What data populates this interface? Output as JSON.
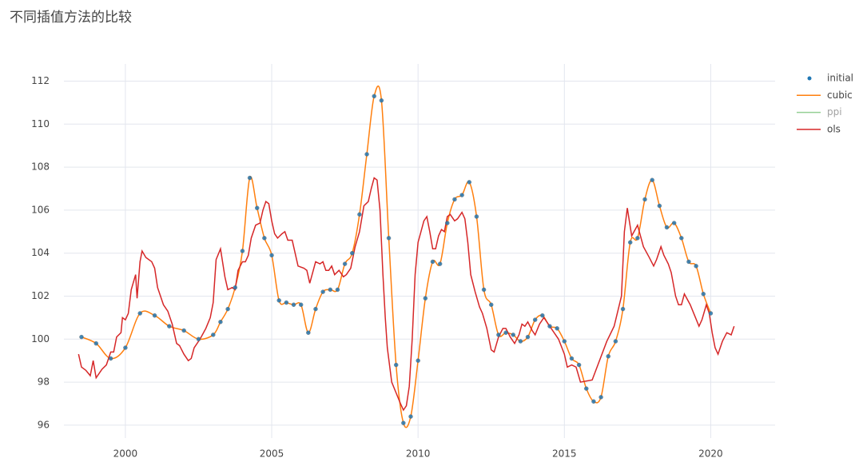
{
  "chart_data": {
    "type": "line",
    "title": "不同插值方法的比较",
    "xlim": [
      1997.9,
      2022.2
    ],
    "xticks": [
      2000,
      2005,
      2010,
      2015,
      2020
    ],
    "ylim": [
      95.4,
      112.8
    ],
    "yticks": [
      96,
      98,
      100,
      102,
      104,
      106,
      108,
      110,
      112
    ],
    "grid": true,
    "legend": "right",
    "series": [
      {
        "name": "initial",
        "color": "#1f77b4",
        "mode": "markers",
        "x": [
          1998.5,
          1999,
          1999.5,
          2000,
          2000.5,
          2001,
          2001.5,
          2002,
          2002.5,
          2003,
          2003.25,
          2003.5,
          2003.75,
          2004,
          2004.25,
          2004.5,
          2004.75,
          2005,
          2005.25,
          2005.5,
          2005.75,
          2006,
          2006.25,
          2006.5,
          2006.75,
          2007,
          2007.25,
          2007.5,
          2007.75,
          2008,
          2008.25,
          2008.5,
          2008.75,
          2009,
          2009.25,
          2009.5,
          2009.75,
          2010,
          2010.25,
          2010.5,
          2010.75,
          2011,
          2011.25,
          2011.5,
          2011.75,
          2012,
          2012.25,
          2012.5,
          2012.75,
          2013,
          2013.25,
          2013.5,
          2013.75,
          2014,
          2014.25,
          2014.5,
          2014.75,
          2015,
          2015.25,
          2015.5,
          2015.75,
          2016,
          2016.25,
          2016.5,
          2016.75,
          2017,
          2017.25,
          2017.5,
          2017.75,
          2018,
          2018.25,
          2018.5,
          2018.75,
          2019,
          2019.25,
          2019.5,
          2019.75,
          2020
        ],
        "values": [
          100.1,
          99.8,
          99.1,
          99.6,
          101.2,
          101.1,
          100.6,
          100.4,
          100.0,
          100.2,
          100.8,
          101.4,
          102.4,
          104.1,
          107.5,
          106.1,
          104.7,
          103.9,
          101.8,
          101.7,
          101.6,
          101.6,
          100.3,
          101.4,
          102.2,
          102.3,
          102.3,
          103.5,
          104.0,
          105.8,
          108.6,
          111.3,
          111.1,
          104.7,
          98.8,
          96.1,
          96.4,
          99.0,
          101.9,
          103.6,
          103.5,
          105.4,
          106.5,
          106.7,
          107.3,
          105.7,
          102.3,
          101.6,
          100.2,
          100.3,
          100.2,
          99.9,
          100.1,
          100.9,
          101.1,
          100.6,
          100.5,
          99.9,
          99.1,
          98.8,
          97.7,
          97.1,
          97.3,
          99.2,
          99.9,
          101.4,
          104.5,
          104.7,
          106.5,
          107.4,
          106.2,
          105.2,
          105.4,
          104.7,
          103.6,
          103.4,
          102.1,
          101.2
        ]
      },
      {
        "name": "cubic",
        "color": "#ff7f0e",
        "mode": "lines",
        "line_shape": "spline",
        "x": [
          1998.5,
          1999,
          1999.5,
          2000,
          2000.5,
          2001,
          2001.5,
          2002,
          2002.5,
          2003,
          2003.25,
          2003.5,
          2003.75,
          2004,
          2004.25,
          2004.5,
          2004.75,
          2005,
          2005.25,
          2005.5,
          2005.75,
          2006,
          2006.25,
          2006.5,
          2006.75,
          2007,
          2007.25,
          2007.5,
          2007.75,
          2008,
          2008.25,
          2008.5,
          2008.75,
          2009,
          2009.25,
          2009.5,
          2009.75,
          2010,
          2010.25,
          2010.5,
          2010.75,
          2011,
          2011.25,
          2011.5,
          2011.75,
          2012,
          2012.25,
          2012.5,
          2012.75,
          2013,
          2013.25,
          2013.5,
          2013.75,
          2014,
          2014.25,
          2014.5,
          2014.75,
          2015,
          2015.25,
          2015.5,
          2015.75,
          2016,
          2016.25,
          2016.5,
          2016.75,
          2017,
          2017.25,
          2017.5,
          2017.75,
          2018,
          2018.25,
          2018.5,
          2018.75,
          2019,
          2019.25,
          2019.5,
          2019.75,
          2020
        ],
        "values": [
          100.1,
          99.8,
          99.1,
          99.6,
          101.2,
          101.1,
          100.6,
          100.4,
          100.0,
          100.2,
          100.8,
          101.4,
          102.4,
          104.1,
          107.5,
          106.1,
          104.7,
          103.9,
          101.8,
          101.7,
          101.6,
          101.6,
          100.3,
          101.4,
          102.2,
          102.3,
          102.3,
          103.5,
          104.0,
          105.8,
          108.6,
          111.3,
          111.1,
          104.7,
          98.8,
          96.1,
          96.4,
          99.0,
          101.9,
          103.6,
          103.5,
          105.4,
          106.5,
          106.7,
          107.3,
          105.7,
          102.3,
          101.6,
          100.2,
          100.3,
          100.2,
          99.9,
          100.1,
          100.9,
          101.1,
          100.6,
          100.5,
          99.9,
          99.1,
          98.8,
          97.7,
          97.1,
          97.3,
          99.2,
          99.9,
          101.4,
          104.5,
          104.7,
          106.5,
          107.4,
          106.2,
          105.2,
          105.4,
          104.7,
          103.6,
          103.4,
          102.1,
          101.2
        ]
      },
      {
        "name": "ppi",
        "color": "#2ca02c",
        "mode": "lines",
        "visible": "legendonly"
      },
      {
        "name": "ols",
        "color": "#d62728",
        "mode": "lines",
        "x": [
          1998.4,
          1998.5,
          1998.65,
          1998.8,
          1998.9,
          1999.0,
          1999.2,
          1999.35,
          1999.5,
          1999.6,
          1999.7,
          1999.85,
          1999.9,
          2000.0,
          2000.1,
          2000.2,
          2000.35,
          2000.4,
          2000.5,
          2000.57,
          2000.7,
          2000.9,
          2001.0,
          2001.1,
          2001.3,
          2001.45,
          2001.6,
          2001.75,
          2001.85,
          2002.0,
          2002.15,
          2002.25,
          2002.35,
          2002.55,
          2002.75,
          2002.9,
          2003.0,
          2003.1,
          2003.25,
          2003.4,
          2003.5,
          2003.65,
          2003.75,
          2003.85,
          2004.0,
          2004.1,
          2004.2,
          2004.3,
          2004.45,
          2004.6,
          2004.7,
          2004.8,
          2004.9,
          2005.0,
          2005.1,
          2005.2,
          2005.35,
          2005.45,
          2005.55,
          2005.7,
          2005.8,
          2005.9,
          2006.1,
          2006.2,
          2006.3,
          2006.4,
          2006.5,
          2006.65,
          2006.75,
          2006.85,
          2006.95,
          2007.05,
          2007.15,
          2007.3,
          2007.45,
          2007.55,
          2007.7,
          2007.85,
          2008.0,
          2008.15,
          2008.3,
          2008.4,
          2008.5,
          2008.6,
          2008.7,
          2008.8,
          2008.88,
          2008.95,
          2009.1,
          2009.25,
          2009.4,
          2009.5,
          2009.6,
          2009.7,
          2009.8,
          2009.9,
          2010.0,
          2010.1,
          2010.2,
          2010.3,
          2010.4,
          2010.5,
          2010.6,
          2010.7,
          2010.8,
          2010.9,
          2011.0,
          2011.1,
          2011.25,
          2011.35,
          2011.5,
          2011.6,
          2011.7,
          2011.8,
          2011.95,
          2012.1,
          2012.2,
          2012.35,
          2012.5,
          2012.6,
          2012.75,
          2012.9,
          2013.0,
          2013.15,
          2013.3,
          2013.45,
          2013.55,
          2013.65,
          2013.75,
          2013.9,
          2014.0,
          2014.15,
          2014.3,
          2014.45,
          2014.6,
          2014.8,
          2015.0,
          2015.1,
          2015.25,
          2015.4,
          2015.55,
          2015.95,
          2016.2,
          2016.45,
          2016.7,
          2016.95,
          2017.05,
          2017.15,
          2017.3,
          2017.5,
          2017.7,
          2017.9,
          2018.05,
          2018.15,
          2018.3,
          2018.4,
          2018.55,
          2018.65,
          2018.8,
          2018.9,
          2019.0,
          2019.1,
          2019.3,
          2019.45,
          2019.6,
          2019.7,
          2019.85,
          2019.95,
          2020.05,
          2020.15,
          2020.25,
          2020.4,
          2020.55,
          2020.7,
          2020.8
        ],
        "values": [
          99.3,
          98.7,
          98.55,
          98.3,
          99.0,
          98.2,
          98.6,
          98.8,
          99.4,
          99.4,
          100.1,
          100.3,
          101.0,
          100.9,
          101.2,
          102.3,
          103.0,
          101.9,
          103.6,
          104.1,
          103.8,
          103.6,
          103.3,
          102.4,
          101.6,
          101.3,
          100.7,
          99.8,
          99.7,
          99.3,
          99.0,
          99.1,
          99.6,
          100.0,
          100.5,
          101.0,
          101.7,
          103.7,
          104.2,
          102.9,
          102.3,
          102.4,
          102.3,
          103.2,
          103.6,
          103.6,
          103.9,
          104.7,
          105.3,
          105.4,
          106.0,
          106.4,
          106.3,
          105.5,
          104.9,
          104.7,
          104.9,
          105.0,
          104.6,
          104.6,
          104.0,
          103.4,
          103.3,
          103.2,
          102.6,
          103.1,
          103.6,
          103.5,
          103.6,
          103.2,
          103.2,
          103.4,
          103.0,
          103.2,
          102.9,
          103.0,
          103.3,
          104.3,
          105.0,
          106.2,
          106.4,
          107.0,
          107.5,
          107.4,
          106.0,
          103.0,
          101.0,
          99.6,
          98.0,
          97.5,
          97.0,
          96.7,
          96.9,
          97.8,
          100.0,
          103.0,
          104.5,
          105.0,
          105.5,
          105.7,
          105.0,
          104.2,
          104.2,
          104.8,
          105.1,
          105.0,
          105.7,
          105.8,
          105.5,
          105.6,
          105.9,
          105.6,
          104.5,
          103.0,
          102.2,
          101.5,
          101.2,
          100.5,
          99.5,
          99.4,
          100.1,
          100.5,
          100.5,
          100.1,
          99.8,
          100.2,
          100.7,
          100.6,
          100.8,
          100.4,
          100.2,
          100.7,
          101.0,
          100.7,
          100.4,
          100.0,
          99.3,
          98.7,
          98.8,
          98.7,
          98.0,
          98.1,
          99.0,
          99.9,
          100.6,
          102.0,
          105.0,
          106.1,
          104.8,
          105.3,
          104.3,
          103.8,
          103.4,
          103.7,
          104.3,
          103.9,
          103.5,
          103.1,
          102.0,
          101.6,
          101.6,
          102.1,
          101.6,
          101.1,
          100.6,
          100.9,
          101.6,
          101.2,
          100.3,
          99.6,
          99.3,
          99.9,
          100.3,
          100.2,
          100.6
        ]
      }
    ]
  }
}
